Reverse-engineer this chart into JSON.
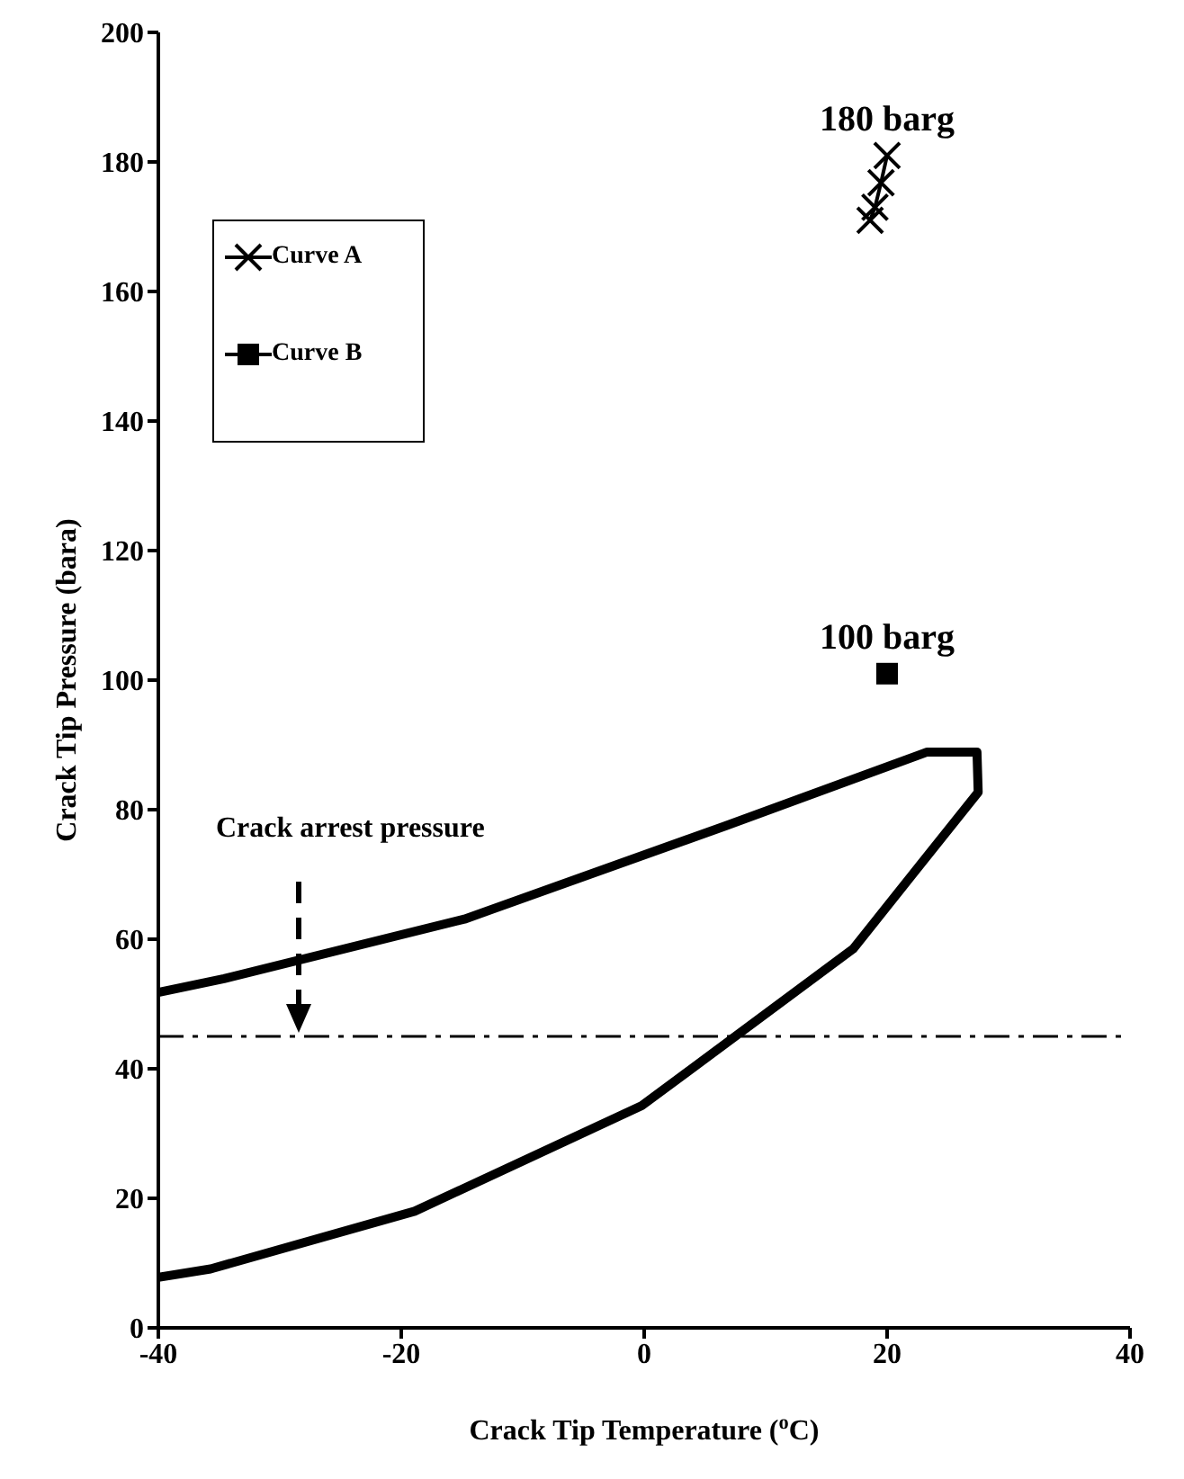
{
  "chart_data": {
    "type": "line",
    "xlabel": "Crack Tip Temperature ($^{o}$C)",
    "ylabel": "Crack Tip Pressure (bara)",
    "xlim": [
      -40,
      40
    ],
    "xticks": [
      -40,
      -20,
      0,
      20,
      40
    ],
    "ylim": [
      0,
      200
    ],
    "yticks": [
      0,
      20,
      40,
      60,
      80,
      100,
      120,
      140,
      160,
      180,
      200
    ],
    "grid": false,
    "legend": "top left",
    "line_style": "solid",
    "series": [
      {
        "type": "line",
        "marker": "none",
        "color": "#000000",
        "x": [
          -40,
          -34.6,
          -14.8,
          6.7,
          23.3,
          27.4,
          27.5,
          17.2,
          -0.2,
          -18.9,
          -35.7,
          -40
        ],
        "values": [
          51.8,
          53.9,
          63.1,
          77.5,
          88.9,
          88.9,
          82.7,
          58.5,
          34.3,
          18,
          9.1,
          7.8
        ]
      },
      {
        "name": "Curve A",
        "type": "line",
        "marker": "cross",
        "color": "#000000",
        "x": [
          18.6,
          19,
          19.5,
          20
        ],
        "values": [
          171,
          173,
          176.8,
          181
        ]
      },
      {
        "name": "Curve B",
        "type": "line",
        "marker": "square",
        "color": "#000000",
        "x": [
          20
        ],
        "values": [
          101
        ]
      }
    ],
    "ref_lines": [
      {
        "axis": "y",
        "value": 45,
        "color": "#000000",
        "line_style": "dashdot"
      }
    ],
    "annotations": [
      "Crack arrest pressure",
      {
        "text": "180 barg",
        "x": 20,
        "y": 181
      },
      {
        "text": "100 barg",
        "x": 20,
        "y": 101
      }
    ]
  }
}
